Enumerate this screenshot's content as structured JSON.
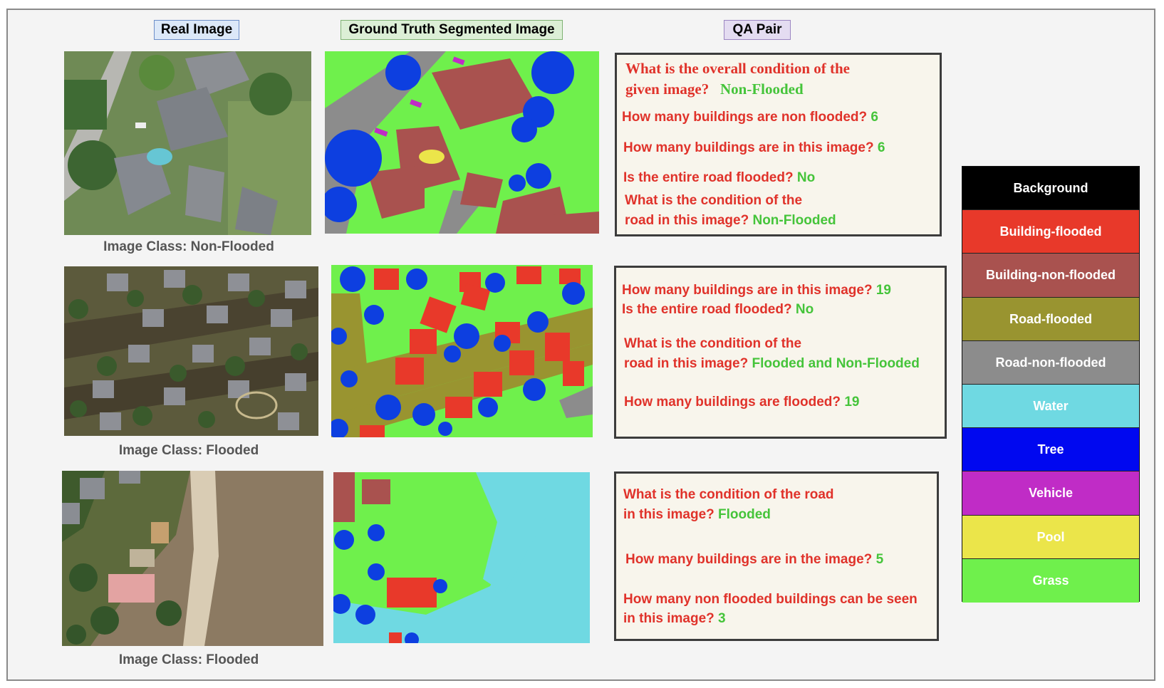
{
  "headers": {
    "real": "Real Image",
    "gt": "Ground Truth Segmented Image",
    "qa": "QA Pair"
  },
  "rows": [
    {
      "image_class": "Image Class: Non-Flooded",
      "qa": [
        {
          "q": "What is the overall condition of the",
          "a": ""
        },
        {
          "q": "given image?",
          "a": "Non-Flooded"
        },
        {
          "q": "How many buildings are non flooded?",
          "a": "6"
        },
        {
          "q": "How many buildings are in this image?",
          "a": "6"
        },
        {
          "q": "Is the entire road flooded?",
          "a": "No"
        },
        {
          "q": "What is the condition of the",
          "a": ""
        },
        {
          "q": "road in this image?",
          "a": "Non-Flooded"
        }
      ]
    },
    {
      "image_class": "Image Class: Flooded",
      "qa": [
        {
          "q": "How many buildings are in this image?",
          "a": "19"
        },
        {
          "q": "Is the entire road flooded?",
          "a": "No"
        },
        {
          "q": "What is the condition of the",
          "a": ""
        },
        {
          "q": "road in this image?",
          "a": "Flooded and Non-Flooded"
        },
        {
          "q": "How many buildings are flooded?",
          "a": "19"
        }
      ]
    },
    {
      "image_class": "Image Class: Flooded",
      "qa": [
        {
          "q": "What is the condition of the road",
          "a": ""
        },
        {
          "q": "in this image?",
          "a": "Flooded"
        },
        {
          "q": "How many buildings are in the image?",
          "a": "5"
        },
        {
          "q": "How many non flooded buildings can be seen",
          "a": ""
        },
        {
          "q": "in this image?",
          "a": "3"
        }
      ]
    }
  ],
  "legend": [
    {
      "label": "Background",
      "color": "#000000"
    },
    {
      "label": "Building-flooded",
      "color": "#e8392a"
    },
    {
      "label": "Building-non-flooded",
      "color": "#a9524f"
    },
    {
      "label": "Road-flooded",
      "color": "#999430"
    },
    {
      "label": "Road-non-flooded",
      "color": "#8c8c8c"
    },
    {
      "label": "Water",
      "color": "#6fd9e2"
    },
    {
      "label": "Tree",
      "color": "#0008f0"
    },
    {
      "label": "Vehicle",
      "color": "#c02cc6"
    },
    {
      "label": "Pool",
      "color": "#ebe54a"
    },
    {
      "label": "Grass",
      "color": "#6ff04c"
    }
  ]
}
